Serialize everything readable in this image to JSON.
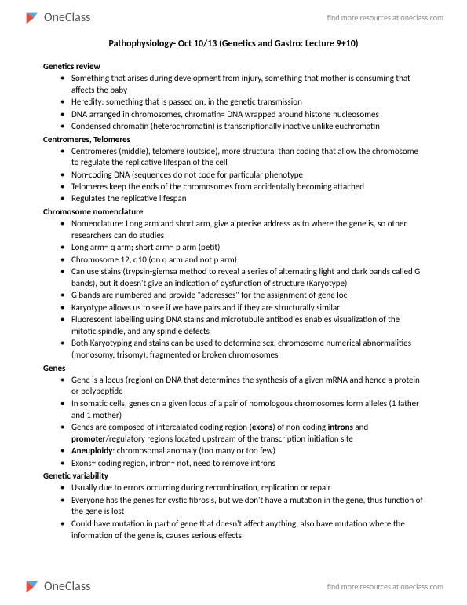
{
  "brand": {
    "name": "OneClass",
    "tagline": "find more resources at oneclass.com",
    "logo_colors": {
      "red": "#e74c3c",
      "blue": "#3498db",
      "text": "#666666"
    }
  },
  "doc": {
    "title": "Pathophysiology- Oct 10/13 (Genetics and Gastro: Lecture 9+10)",
    "sections": [
      {
        "heading": "Genetics review",
        "bullets": [
          {
            "t": "Something that arises during development from injury, something that mother is consuming that affects the baby"
          },
          {
            "t": "Heredity: something that is passed on, in the genetic transmission"
          },
          {
            "t": "DNA arranged in chromosomes, chromatin= DNA wrapped around histone nucleosomes"
          },
          {
            "t": "Condensed chromatin (heterochromatin) is transcriptionally inactive unlike euchromatin"
          }
        ]
      },
      {
        "heading": "Centromeres, Telomeres",
        "bullets": [
          {
            "t": "Centromeres (middle), telomere (outside), more structural than coding that allow the chromosome to regulate the replicative lifespan of the cell"
          },
          {
            "t": "Non-coding DNA (sequences do not code for particular phenotype"
          },
          {
            "t": "Telomeres keep the ends of the chromosomes from accidentally becoming attached"
          },
          {
            "t": "Regulates the replicative lifespan"
          }
        ]
      },
      {
        "heading": "Chromosome nomenclature",
        "bullets": [
          {
            "t": "Nomenclature: Long arm and short arm, give a precise address as to where the gene is, so other researchers can do studies"
          },
          {
            "t": "Long arm= q arm; short arm= p arm (petit)"
          },
          {
            "t": "Chromosome 12, q10  (on q arm and not p arm)"
          },
          {
            "t": "Can use stains (trypsin-giemsa method to reveal a series of alternating light and dark bands called G bands), but it doesn't give an indication of dysfunction of structure (Karyotype)"
          },
          {
            "t": "G bands are numbered and provide \"addresses\" for the assignment of gene loci"
          },
          {
            "t": "Karyotype allows us to see if we have pairs and if they are structurally similar"
          },
          {
            "t": "Fluorescent labelling using DNA stains and microtubule antibodies enables visualization of the mitotic spindle, and any spindle defects"
          },
          {
            "t": "Both Karyotyping and stains can be used to determine sex, chromosome numerical abnormalities (monosomy, trisomy), fragmented or broken chromosomes"
          }
        ]
      },
      {
        "heading": "Genes",
        "bullets": [
          {
            "t": "Gene is a locus (region) on DNA that determines the synthesis of a given mRNA and hence a protein or polypeptide"
          },
          {
            "t": "In somatic cells, genes on a given locus of a pair of homologous chromosomes form alleles (1 father and 1 mother)"
          },
          {
            "html": "Genes are composed of intercalated coding region (<span class='b'>exons</span>) of non-coding <span class='b'>introns</span> and <span class='b'>promoter</span>/regulatory regions located upstream of the transcription initiation site"
          },
          {
            "html": "<span class='b'>Aneuploidy</span>: chromosomal anomaly (too many or too few)"
          },
          {
            "t": "Exons= coding region, intron= not, need to remove introns"
          }
        ]
      },
      {
        "heading": "Genetic variability",
        "bullets": [
          {
            "t": "Usually due to errors occurring during recombination, replication or repair"
          },
          {
            "t": "Everyone has the genes for cystic fibrosis, but we don't have a mutation in the gene, thus function of the gene is lost"
          },
          {
            "t": "Could have mutation in part of gene that doesn't affect anything, also have mutation where the information of the gene is, causes serious effects"
          }
        ]
      }
    ]
  }
}
